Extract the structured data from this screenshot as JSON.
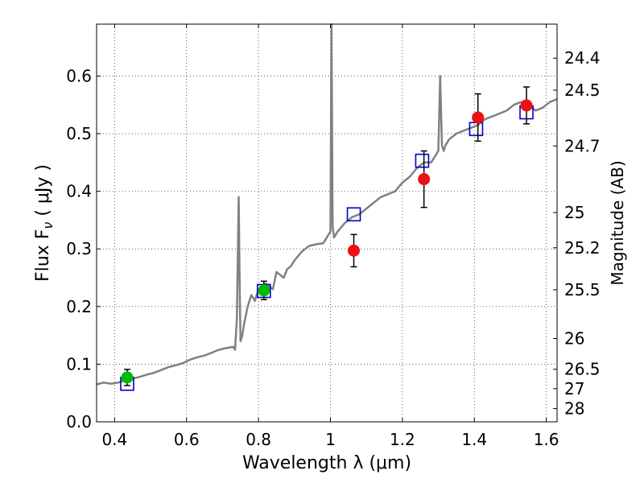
{
  "chart_data": {
    "type": "scatter",
    "title": "",
    "xlabel": "Wavelength  λ (μm)",
    "ylabel": "Flux  F",
    "ylabel_sub": "ν",
    "ylabel_unit": " ( μJy )",
    "ylabel_right": "Magnitude (AB)",
    "xlim": [
      0.35,
      1.63
    ],
    "ylim": [
      0.0,
      0.69
    ],
    "grid": true,
    "legend": "none",
    "x_ticks": [
      {
        "value": 0.4,
        "label": "0.4"
      },
      {
        "value": 0.6,
        "label": "0.6"
      },
      {
        "value": 0.8,
        "label": "0.8"
      },
      {
        "value": 1.0,
        "label": "1"
      },
      {
        "value": 1.2,
        "label": "1.2"
      },
      {
        "value": 1.4,
        "label": "1.4"
      },
      {
        "value": 1.6,
        "label": "1.6"
      }
    ],
    "y_ticks": [
      {
        "value": 0.0,
        "label": "0.0"
      },
      {
        "value": 0.1,
        "label": "0.1"
      },
      {
        "value": 0.2,
        "label": "0.2"
      },
      {
        "value": 0.3,
        "label": "0.3"
      },
      {
        "value": 0.4,
        "label": "0.4"
      },
      {
        "value": 0.5,
        "label": "0.5"
      },
      {
        "value": 0.6,
        "label": "0.6"
      }
    ],
    "right_ticks": [
      {
        "value": 24.4,
        "label": "24.4"
      },
      {
        "value": 24.5,
        "label": "24.5"
      },
      {
        "value": 24.7,
        "label": "24.7"
      },
      {
        "value": 25.0,
        "label": "25"
      },
      {
        "value": 25.2,
        "label": "25.2"
      },
      {
        "value": 25.5,
        "label": "25.5"
      },
      {
        "value": 26.0,
        "label": "26"
      },
      {
        "value": 26.5,
        "label": "26.5"
      },
      {
        "value": 27.0,
        "label": "27"
      },
      {
        "value": 28.0,
        "label": "28"
      }
    ],
    "series": [
      {
        "type": "line",
        "color": "#808080",
        "x": [
          0.35,
          0.37,
          0.39,
          0.41,
          0.43,
          0.45,
          0.47,
          0.49,
          0.51,
          0.53,
          0.55,
          0.57,
          0.59,
          0.61,
          0.63,
          0.65,
          0.67,
          0.69,
          0.71,
          0.73,
          0.735,
          0.74,
          0.745,
          0.748,
          0.75,
          0.755,
          0.76,
          0.77,
          0.78,
          0.79,
          0.8,
          0.81,
          0.82,
          0.83,
          0.84,
          0.85,
          0.86,
          0.87,
          0.88,
          0.89,
          0.9,
          0.92,
          0.94,
          0.96,
          0.98,
          0.99,
          0.995,
          1.0,
          1.003,
          1.006,
          1.01,
          1.02,
          1.04,
          1.06,
          1.08,
          1.1,
          1.12,
          1.14,
          1.16,
          1.18,
          1.2,
          1.22,
          1.24,
          1.26,
          1.28,
          1.29,
          1.3,
          1.305,
          1.31,
          1.315,
          1.32,
          1.33,
          1.35,
          1.37,
          1.39,
          1.41,
          1.43,
          1.45,
          1.47,
          1.49,
          1.51,
          1.53,
          1.55,
          1.57,
          1.59,
          1.61,
          1.63
        ],
        "y": [
          0.065,
          0.068,
          0.066,
          0.068,
          0.072,
          0.075,
          0.078,
          0.082,
          0.085,
          0.09,
          0.095,
          0.098,
          0.102,
          0.108,
          0.112,
          0.115,
          0.12,
          0.125,
          0.128,
          0.13,
          0.125,
          0.18,
          0.39,
          0.22,
          0.14,
          0.15,
          0.17,
          0.2,
          0.22,
          0.21,
          0.23,
          0.225,
          0.24,
          0.235,
          0.23,
          0.26,
          0.255,
          0.25,
          0.265,
          0.27,
          0.28,
          0.295,
          0.305,
          0.308,
          0.31,
          0.32,
          0.325,
          0.33,
          0.69,
          0.34,
          0.32,
          0.33,
          0.345,
          0.355,
          0.36,
          0.37,
          0.38,
          0.39,
          0.395,
          0.4,
          0.415,
          0.425,
          0.44,
          0.45,
          0.45,
          0.46,
          0.47,
          0.6,
          0.48,
          0.47,
          0.48,
          0.49,
          0.5,
          0.505,
          0.51,
          0.515,
          0.525,
          0.53,
          0.535,
          0.54,
          0.55,
          0.555,
          0.55,
          0.54,
          0.545,
          0.555,
          0.56
        ]
      },
      {
        "type": "scatter",
        "marker": "open-square",
        "color": "#0000cc",
        "x": [
          0.435,
          0.815,
          1.065,
          1.255,
          1.405,
          1.545
        ],
        "y": [
          0.066,
          0.227,
          0.36,
          0.453,
          0.508,
          0.537
        ]
      },
      {
        "type": "errorbar",
        "marker": "filled-circle",
        "color": "#00bb00",
        "x": [
          0.435,
          0.815
        ],
        "y": [
          0.077,
          0.228
        ],
        "yerr": [
          0.014,
          0.016
        ]
      },
      {
        "type": "errorbar",
        "marker": "filled-circle",
        "color": "#ee1111",
        "x": [
          1.065,
          1.26,
          1.41,
          1.545
        ],
        "y": [
          0.297,
          0.421,
          0.528,
          0.549
        ],
        "yerr": [
          0.028,
          0.049,
          0.041,
          0.032
        ]
      }
    ]
  }
}
